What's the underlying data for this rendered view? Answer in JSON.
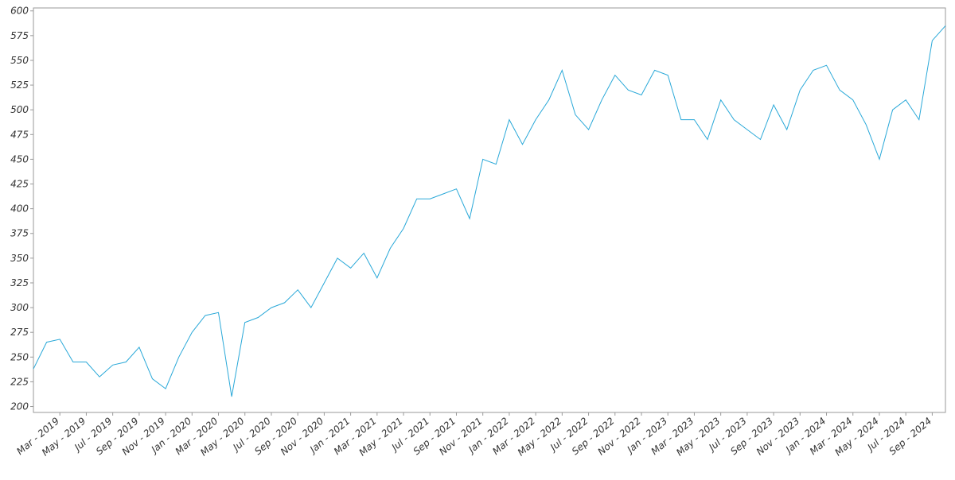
{
  "chart_data": {
    "type": "line",
    "x": [
      "2019-01",
      "2019-02",
      "2019-03",
      "2019-04",
      "2019-05",
      "2019-06",
      "2019-07",
      "2019-08",
      "2019-09",
      "2019-10",
      "2019-11",
      "2019-12",
      "2020-01",
      "2020-02",
      "2020-03",
      "2020-04",
      "2020-05",
      "2020-06",
      "2020-07",
      "2020-08",
      "2020-09",
      "2020-10",
      "2020-11",
      "2020-12",
      "2021-01",
      "2021-02",
      "2021-03",
      "2021-04",
      "2021-05",
      "2021-06",
      "2021-07",
      "2021-08",
      "2021-09",
      "2021-10",
      "2021-11",
      "2021-12",
      "2022-01",
      "2022-02",
      "2022-03",
      "2022-04",
      "2022-05",
      "2022-06",
      "2022-07",
      "2022-08",
      "2022-09",
      "2022-10",
      "2022-11",
      "2022-12",
      "2023-01",
      "2023-02",
      "2023-03",
      "2023-04",
      "2023-05",
      "2023-06",
      "2023-07",
      "2023-08",
      "2023-09",
      "2023-10",
      "2023-11",
      "2023-12",
      "2024-01",
      "2024-02",
      "2024-03",
      "2024-04",
      "2024-05",
      "2024-06",
      "2024-07",
      "2024-08",
      "2024-09",
      "2024-10"
    ],
    "series": [
      {
        "color": "#29a8d8",
        "values": [
          238,
          265,
          268,
          245,
          245,
          230,
          242,
          245,
          260,
          228,
          218,
          250,
          275,
          292,
          295,
          210,
          285,
          290,
          300,
          305,
          318,
          300,
          325,
          350,
          340,
          355,
          330,
          360,
          380,
          410,
          410,
          415,
          420,
          390,
          450,
          445,
          490,
          465,
          490,
          510,
          540,
          495,
          480,
          510,
          535,
          520,
          515,
          540,
          535,
          490,
          490,
          470,
          510,
          490,
          480,
          470,
          505,
          480,
          520,
          540,
          545,
          520,
          510,
          485,
          450,
          500,
          510,
          490,
          570,
          585
        ]
      }
    ],
    "xlim": [
      "2019-01",
      "2024-10"
    ],
    "xticks": [
      {
        "value": "2019-03",
        "label": "Mar - 2019"
      },
      {
        "value": "2019-05",
        "label": "May - 2019"
      },
      {
        "value": "2019-07",
        "label": "Jul - 2019"
      },
      {
        "value": "2019-09",
        "label": "Sep - 2019"
      },
      {
        "value": "2019-11",
        "label": "Nov - 2019"
      },
      {
        "value": "2020-01",
        "label": "Jan - 2020"
      },
      {
        "value": "2020-03",
        "label": "Mar - 2020"
      },
      {
        "value": "2020-05",
        "label": "May - 2020"
      },
      {
        "value": "2020-07",
        "label": "Jul - 2020"
      },
      {
        "value": "2020-09",
        "label": "Sep - 2020"
      },
      {
        "value": "2020-11",
        "label": "Nov - 2020"
      },
      {
        "value": "2021-01",
        "label": "Jan - 2021"
      },
      {
        "value": "2021-03",
        "label": "Mar - 2021"
      },
      {
        "value": "2021-05",
        "label": "May - 2021"
      },
      {
        "value": "2021-07",
        "label": "Jul - 2021"
      },
      {
        "value": "2021-09",
        "label": "Sep - 2021"
      },
      {
        "value": "2021-11",
        "label": "Nov - 2021"
      },
      {
        "value": "2022-01",
        "label": "Jan - 2022"
      },
      {
        "value": "2022-03",
        "label": "Mar - 2022"
      },
      {
        "value": "2022-05",
        "label": "May - 2022"
      },
      {
        "value": "2022-07",
        "label": "Jul - 2022"
      },
      {
        "value": "2022-09",
        "label": "Sep - 2022"
      },
      {
        "value": "2022-11",
        "label": "Nov - 2022"
      },
      {
        "value": "2023-01",
        "label": "Jan - 2023"
      },
      {
        "value": "2023-03",
        "label": "Mar - 2023"
      },
      {
        "value": "2023-05",
        "label": "May - 2023"
      },
      {
        "value": "2023-07",
        "label": "Jul - 2023"
      },
      {
        "value": "2023-09",
        "label": "Sep - 2023"
      },
      {
        "value": "2023-11",
        "label": "Nov - 2023"
      },
      {
        "value": "2024-01",
        "label": "Jan - 2024"
      },
      {
        "value": "2024-03",
        "label": "Mar - 2024"
      },
      {
        "value": "2024-05",
        "label": "May - 2024"
      },
      {
        "value": "2024-07",
        "label": "Jul - 2024"
      },
      {
        "value": "2024-09",
        "label": "Sep - 2024"
      }
    ],
    "ylim": [
      194,
      603
    ],
    "yticks": [
      200,
      225,
      250,
      275,
      300,
      325,
      350,
      375,
      400,
      425,
      450,
      475,
      500,
      525,
      550,
      575,
      600
    ]
  }
}
